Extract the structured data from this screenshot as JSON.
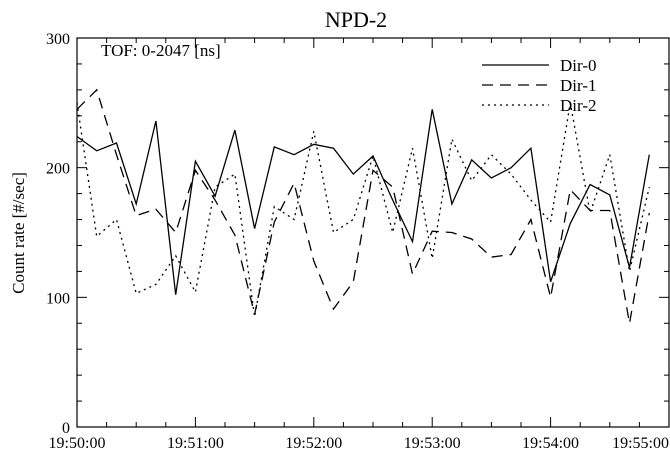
{
  "chart_data": {
    "type": "line",
    "title": "NPD-2",
    "xlabel": "",
    "ylabel": "Count rate [#/sec]",
    "annotation": "TOF: 0-2047 [ns]",
    "ylim": [
      0,
      300
    ],
    "yticks": [
      0,
      100,
      200,
      300
    ],
    "xlim": [
      "19:50:00",
      "19:55:00"
    ],
    "xticks": [
      "19:50:00",
      "19:51:00",
      "19:52:00",
      "19:53:00",
      "19:54:00",
      "19:55:00"
    ],
    "grid": false,
    "legend_position": "top-right",
    "series": [
      {
        "name": "Dir-0",
        "line_style": "solid",
        "points": [
          [
            "19:50:00",
            224
          ],
          [
            "19:50:10",
            213
          ],
          [
            "19:50:20",
            219
          ],
          [
            "19:50:30",
            172
          ],
          [
            "19:50:40",
            236
          ],
          [
            "19:50:50",
            102
          ],
          [
            "19:51:00",
            205
          ],
          [
            "19:51:10",
            178
          ],
          [
            "19:51:20",
            229
          ],
          [
            "19:51:30",
            153
          ],
          [
            "19:51:40",
            216
          ],
          [
            "19:51:50",
            210
          ],
          [
            "19:52:00",
            218
          ],
          [
            "19:52:10",
            215
          ],
          [
            "19:52:20",
            195
          ],
          [
            "19:52:30",
            209
          ],
          [
            "19:52:40",
            175
          ],
          [
            "19:52:50",
            143
          ],
          [
            "19:53:00",
            245
          ],
          [
            "19:53:10",
            172
          ],
          [
            "19:53:20",
            206
          ],
          [
            "19:53:30",
            192
          ],
          [
            "19:53:40",
            200
          ],
          [
            "19:53:50",
            215
          ],
          [
            "19:54:00",
            112
          ],
          [
            "19:54:10",
            157
          ],
          [
            "19:54:20",
            187
          ],
          [
            "19:54:30",
            179
          ],
          [
            "19:54:40",
            123
          ],
          [
            "19:54:50",
            210
          ]
        ]
      },
      {
        "name": "Dir-1",
        "line_style": "dashed",
        "points": [
          [
            "19:50:00",
            245
          ],
          [
            "19:50:10",
            260
          ],
          [
            "19:50:20",
            210
          ],
          [
            "19:50:30",
            163
          ],
          [
            "19:50:40",
            168
          ],
          [
            "19:50:50",
            150
          ],
          [
            "19:51:00",
            198
          ],
          [
            "19:51:10",
            175
          ],
          [
            "19:51:20",
            148
          ],
          [
            "19:51:30",
            87
          ],
          [
            "19:51:40",
            158
          ],
          [
            "19:51:50",
            188
          ],
          [
            "19:52:00",
            128
          ],
          [
            "19:52:10",
            91
          ],
          [
            "19:52:20",
            112
          ],
          [
            "19:52:30",
            198
          ],
          [
            "19:52:40",
            185
          ],
          [
            "19:52:50",
            118
          ],
          [
            "19:53:00",
            151
          ],
          [
            "19:53:10",
            150
          ],
          [
            "19:53:20",
            145
          ],
          [
            "19:53:30",
            131
          ],
          [
            "19:53:40",
            133
          ],
          [
            "19:53:50",
            160
          ],
          [
            "19:54:00",
            100
          ],
          [
            "19:54:10",
            183
          ],
          [
            "19:54:20",
            167
          ],
          [
            "19:54:30",
            167
          ],
          [
            "19:54:40",
            80
          ],
          [
            "19:54:50",
            165
          ]
        ]
      },
      {
        "name": "Dir-2",
        "line_style": "dotted",
        "points": [
          [
            "19:50:00",
            250
          ],
          [
            "19:50:10",
            147
          ],
          [
            "19:50:20",
            160
          ],
          [
            "19:50:30",
            103
          ],
          [
            "19:50:40",
            110
          ],
          [
            "19:50:50",
            132
          ],
          [
            "19:51:00",
            104
          ],
          [
            "19:51:10",
            185
          ],
          [
            "19:51:20",
            195
          ],
          [
            "19:51:30",
            85
          ],
          [
            "19:51:40",
            170
          ],
          [
            "19:51:50",
            160
          ],
          [
            "19:52:00",
            228
          ],
          [
            "19:52:10",
            150
          ],
          [
            "19:52:20",
            160
          ],
          [
            "19:52:30",
            209
          ],
          [
            "19:52:40",
            150
          ],
          [
            "19:52:50",
            215
          ],
          [
            "19:53:00",
            130
          ],
          [
            "19:53:10",
            222
          ],
          [
            "19:53:20",
            190
          ],
          [
            "19:53:30",
            210
          ],
          [
            "19:53:40",
            195
          ],
          [
            "19:53:50",
            175
          ],
          [
            "19:54:00",
            158
          ],
          [
            "19:54:10",
            250
          ],
          [
            "19:54:20",
            165
          ],
          [
            "19:54:30",
            210
          ],
          [
            "19:54:40",
            120
          ],
          [
            "19:54:50",
            185
          ]
        ]
      }
    ]
  }
}
